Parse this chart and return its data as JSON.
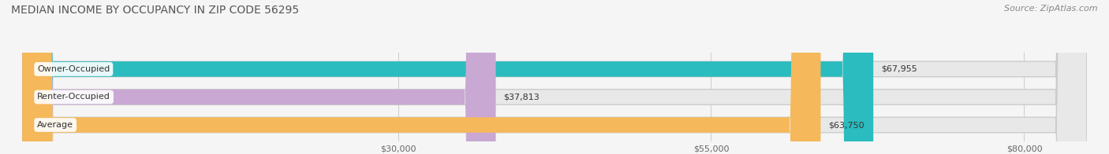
{
  "title": "MEDIAN INCOME BY OCCUPANCY IN ZIP CODE 56295",
  "source": "Source: ZipAtlas.com",
  "categories": [
    "Owner-Occupied",
    "Renter-Occupied",
    "Average"
  ],
  "values": [
    67955,
    37813,
    63750
  ],
  "bar_colors": [
    "#2abcbe",
    "#c9a8d4",
    "#f5b85a"
  ],
  "bar_labels": [
    "$67,955",
    "$37,813",
    "$63,750"
  ],
  "x_ticks": [
    30000,
    55000,
    80000
  ],
  "x_tick_labels": [
    "$30,000",
    "$55,000",
    "$80,000"
  ],
  "xlim": [
    0,
    85000
  ],
  "background_color": "#f5f5f5",
  "bar_background_color": "#e8e8e8",
  "title_fontsize": 10,
  "source_fontsize": 8
}
